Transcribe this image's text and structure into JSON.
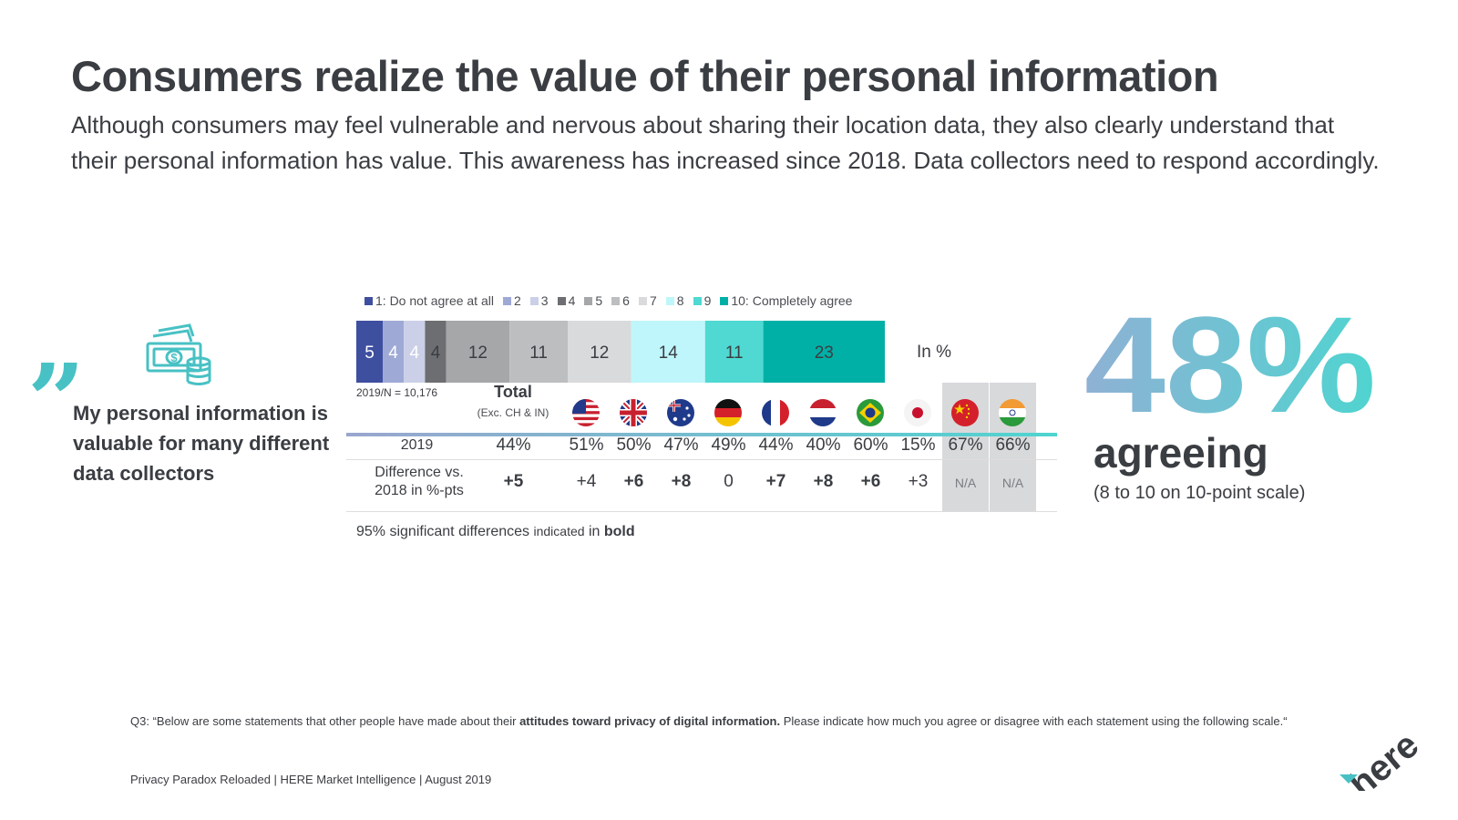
{
  "title": "Consumers realize the value of their personal information",
  "subtitle": "Although consumers may feel vulnerable and nervous about sharing their location data, they also clearly understand that their personal information has value. This awareness has increased since 2018. Data collectors need to respond accordingly.",
  "statement": {
    "quote_mark": "”",
    "text": "My personal information is valuable for many different data collectors",
    "icon": "money-icon"
  },
  "chart_data": {
    "type": "bar",
    "orientation": "horizontal-stacked",
    "categories": [
      "1: Do not agree at all",
      "2",
      "3",
      "4",
      "5",
      "6",
      "7",
      "8",
      "9",
      "10: Completely agree"
    ],
    "values": [
      5,
      4,
      4,
      4,
      12,
      11,
      12,
      14,
      11,
      23
    ],
    "colors": [
      "#3f4fa0",
      "#9fa9d6",
      "#cbd0e8",
      "#6d6e71",
      "#a6a7a9",
      "#bdbec0",
      "#d9dadb",
      "#bff6fb",
      "#4fd9d2",
      "#00b0a6"
    ],
    "label_colors": [
      "#ffffff",
      "#ffffff",
      "#ffffff",
      "#3a3d42",
      "#3a3d42",
      "#3a3d42",
      "#3a3d42",
      "#3a3d42",
      "#3a3d42",
      "#3a3d42"
    ],
    "unit_label": "In %",
    "n_label": "2019/N = 10,176"
  },
  "table": {
    "total_label": "Total",
    "total_sub": "(Exc. CH & IN)",
    "row1_label": "2019",
    "row2_label_line1": "Difference vs.",
    "row2_label_line2": "2018 in %-pts",
    "total_2019": "44%",
    "total_diff": "+5",
    "countries": [
      {
        "flag": "usa-flag-icon",
        "value_2019": "51%",
        "diff": "+4",
        "diff_bold": false,
        "shaded": false
      },
      {
        "flag": "uk-flag-icon",
        "value_2019": "50%",
        "diff": "+6",
        "diff_bold": true,
        "shaded": false
      },
      {
        "flag": "australia-flag-icon",
        "value_2019": "47%",
        "diff": "+8",
        "diff_bold": true,
        "shaded": false
      },
      {
        "flag": "germany-flag-icon",
        "value_2019": "49%",
        "diff": "0",
        "diff_bold": false,
        "shaded": false
      },
      {
        "flag": "france-flag-icon",
        "value_2019": "44%",
        "diff": "+7",
        "diff_bold": true,
        "shaded": false
      },
      {
        "flag": "netherlands-flag-icon",
        "value_2019": "40%",
        "diff": "+8",
        "diff_bold": true,
        "shaded": false
      },
      {
        "flag": "brazil-flag-icon",
        "value_2019": "60%",
        "diff": "+6",
        "diff_bold": true,
        "shaded": false
      },
      {
        "flag": "japan-flag-icon",
        "value_2019": "15%",
        "diff": "+3",
        "diff_bold": false,
        "shaded": false
      },
      {
        "flag": "china-flag-icon",
        "value_2019": "67%",
        "diff": "N/A",
        "diff_bold": false,
        "shaded": true
      },
      {
        "flag": "india-flag-icon",
        "value_2019": "66%",
        "diff": "N/A",
        "diff_bold": false,
        "shaded": true
      }
    ]
  },
  "significance_note": {
    "part1": "95% significant differences ",
    "part2": "indicated",
    "part3": " in ",
    "part4": "bold"
  },
  "headline_stat": {
    "value": "48%",
    "label": "agreeing",
    "note": "(8 to 10 on 10-point scale)",
    "gradient_start": "#8fb1d4",
    "gradient_end": "#4fd4d0"
  },
  "question": {
    "prefix": "Q3: “Below are some statements that other people have made about their ",
    "bold": "attitudes toward privacy of digital information.",
    "suffix": " Please indicate how much you agree or disagree with each statement using the following scale.“"
  },
  "footer": "Privacy Paradox Reloaded | HERE Market Intelligence | August 2019",
  "logo_text": "here",
  "colors": {
    "accent": "#48c1c4",
    "text": "#3a3d42"
  }
}
